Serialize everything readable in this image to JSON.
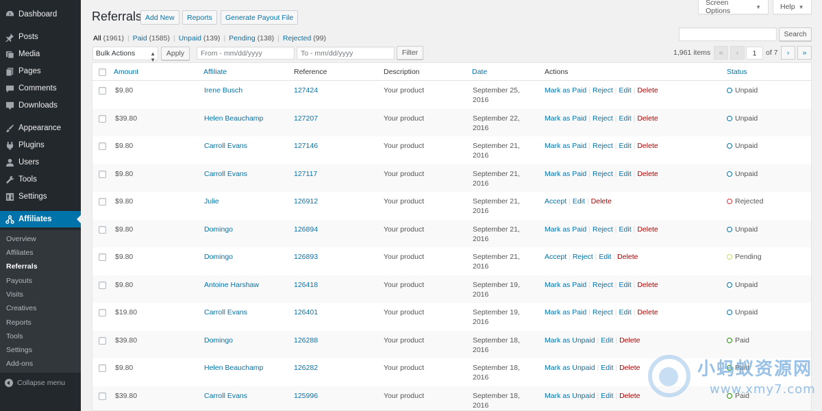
{
  "sidebar": {
    "menu": [
      {
        "label": "Dashboard",
        "icon": "dashboard-icon"
      },
      {
        "label": "Posts",
        "icon": "pin-icon"
      },
      {
        "label": "Media",
        "icon": "media-icon"
      },
      {
        "label": "Pages",
        "icon": "pages-icon"
      },
      {
        "label": "Comments",
        "icon": "comment-icon"
      },
      {
        "label": "Downloads",
        "icon": "download-icon"
      },
      {
        "label": "Appearance",
        "icon": "brush-icon"
      },
      {
        "label": "Plugins",
        "icon": "plugin-icon"
      },
      {
        "label": "Users",
        "icon": "users-icon"
      },
      {
        "label": "Tools",
        "icon": "wrench-icon"
      },
      {
        "label": "Settings",
        "icon": "settings-icon"
      },
      {
        "label": "Affiliates",
        "icon": "affiliates-icon"
      }
    ],
    "submenu": [
      "Overview",
      "Affiliates",
      "Referrals",
      "Payouts",
      "Visits",
      "Creatives",
      "Reports",
      "Tools",
      "Settings",
      "Add-ons"
    ],
    "collapse_label": "Collapse menu"
  },
  "top": {
    "screen_options": "Screen Options",
    "help": "Help"
  },
  "header": {
    "title": "Referrals",
    "add_new": "Add New",
    "reports": "Reports",
    "generate_payout": "Generate Payout File"
  },
  "filters": {
    "all": "All",
    "all_count": "(1961)",
    "paid": "Paid",
    "paid_count": "(1585)",
    "unpaid": "Unpaid",
    "unpaid_count": "(139)",
    "pending": "Pending",
    "pending_count": "(138)",
    "rejected": "Rejected",
    "rejected_count": "(99)"
  },
  "search": {
    "button": "Search",
    "value": ""
  },
  "toolbar": {
    "bulk_actions": "Bulk Actions",
    "apply": "Apply",
    "from_placeholder": "From - mm/dd/yyyy",
    "to_placeholder": "To - mm/dd/yyyy",
    "filter": "Filter"
  },
  "pagination": {
    "items": "1,961 items",
    "first": "«",
    "prev": "‹",
    "current": "1",
    "of": "of 7",
    "next": "›",
    "last": "»"
  },
  "columns": {
    "amount": "Amount",
    "affiliate": "Affiliate",
    "reference": "Reference",
    "description": "Description",
    "date": "Date",
    "actions": "Actions",
    "status": "Status"
  },
  "colors": {
    "link": "#0073aa",
    "delete": "#aa0000",
    "unpaid": "#0073aa",
    "rejected": "#dc3232",
    "pending": "#c5d96a",
    "paid": "#1e8c00"
  },
  "rows": [
    {
      "amount": "$9.80",
      "affiliate": "Irene Busch",
      "reference": "127424",
      "description": "Your product",
      "date1": "September 25,",
      "date2": "2016",
      "actions": [
        "Mark as Paid",
        "Reject",
        "Edit",
        "Delete"
      ],
      "status": "Unpaid",
      "color": "#0073aa"
    },
    {
      "amount": "$39.80",
      "affiliate": "Helen Beauchamp",
      "reference": "127207",
      "description": "Your product",
      "date1": "September 22,",
      "date2": "2016",
      "actions": [
        "Mark as Paid",
        "Reject",
        "Edit",
        "Delete"
      ],
      "status": "Unpaid",
      "color": "#0073aa"
    },
    {
      "amount": "$9.80",
      "affiliate": "Carroll Evans",
      "reference": "127146",
      "description": "Your product",
      "date1": "September 21,",
      "date2": "2016",
      "actions": [
        "Mark as Paid",
        "Reject",
        "Edit",
        "Delete"
      ],
      "status": "Unpaid",
      "color": "#0073aa"
    },
    {
      "amount": "$9.80",
      "affiliate": "Carroll Evans",
      "reference": "127117",
      "description": "Your product",
      "date1": "September 21,",
      "date2": "2016",
      "actions": [
        "Mark as Paid",
        "Reject",
        "Edit",
        "Delete"
      ],
      "status": "Unpaid",
      "color": "#0073aa"
    },
    {
      "amount": "$9.80",
      "affiliate": "Julie",
      "reference": "126912",
      "description": "Your product",
      "date1": "September 21,",
      "date2": "2016",
      "actions": [
        "Accept",
        "Edit",
        "Delete"
      ],
      "status": "Rejected",
      "color": "#dc3232"
    },
    {
      "amount": "$9.80",
      "affiliate": "Domingo",
      "reference": "126894",
      "description": "Your product",
      "date1": "September 21,",
      "date2": "2016",
      "actions": [
        "Mark as Paid",
        "Reject",
        "Edit",
        "Delete"
      ],
      "status": "Unpaid",
      "color": "#0073aa"
    },
    {
      "amount": "$9.80",
      "affiliate": "Domingo",
      "reference": "126893",
      "description": "Your product",
      "date1": "September 21,",
      "date2": "2016",
      "actions": [
        "Accept",
        "Reject",
        "Edit",
        "Delete"
      ],
      "status": "Pending",
      "color": "#c5d96a"
    },
    {
      "amount": "$9.80",
      "affiliate": "Antoine Harshaw",
      "reference": "126418",
      "description": "Your product",
      "date1": "September 19,",
      "date2": "2016",
      "actions": [
        "Mark as Paid",
        "Reject",
        "Edit",
        "Delete"
      ],
      "status": "Unpaid",
      "color": "#0073aa"
    },
    {
      "amount": "$19.80",
      "affiliate": "Carroll Evans",
      "reference": "126401",
      "description": "Your product",
      "date1": "September 19,",
      "date2": "2016",
      "actions": [
        "Mark as Paid",
        "Reject",
        "Edit",
        "Delete"
      ],
      "status": "Unpaid",
      "color": "#0073aa"
    },
    {
      "amount": "$39.80",
      "affiliate": "Domingo",
      "reference": "126288",
      "description": "Your product",
      "date1": "September 18,",
      "date2": "2016",
      "actions": [
        "Mark as Unpaid",
        "Edit",
        "Delete"
      ],
      "status": "Paid",
      "color": "#1e8c00"
    },
    {
      "amount": "$9.80",
      "affiliate": "Helen Beauchamp",
      "reference": "126282",
      "description": "Your product",
      "date1": "September 18,",
      "date2": "2016",
      "actions": [
        "Mark as Unpaid",
        "Edit",
        "Delete"
      ],
      "status": "Paid",
      "color": "#1e8c00"
    },
    {
      "amount": "$39.80",
      "affiliate": "Carroll Evans",
      "reference": "125996",
      "description": "Your product",
      "date1": "September 18,",
      "date2": "2016",
      "actions": [
        "Mark as Unpaid",
        "Edit",
        "Delete"
      ],
      "status": "Paid",
      "color": "#1e8c00"
    }
  ],
  "watermark": {
    "text": "小蚂蚁资源网",
    "url": "www.xmy7.com"
  }
}
